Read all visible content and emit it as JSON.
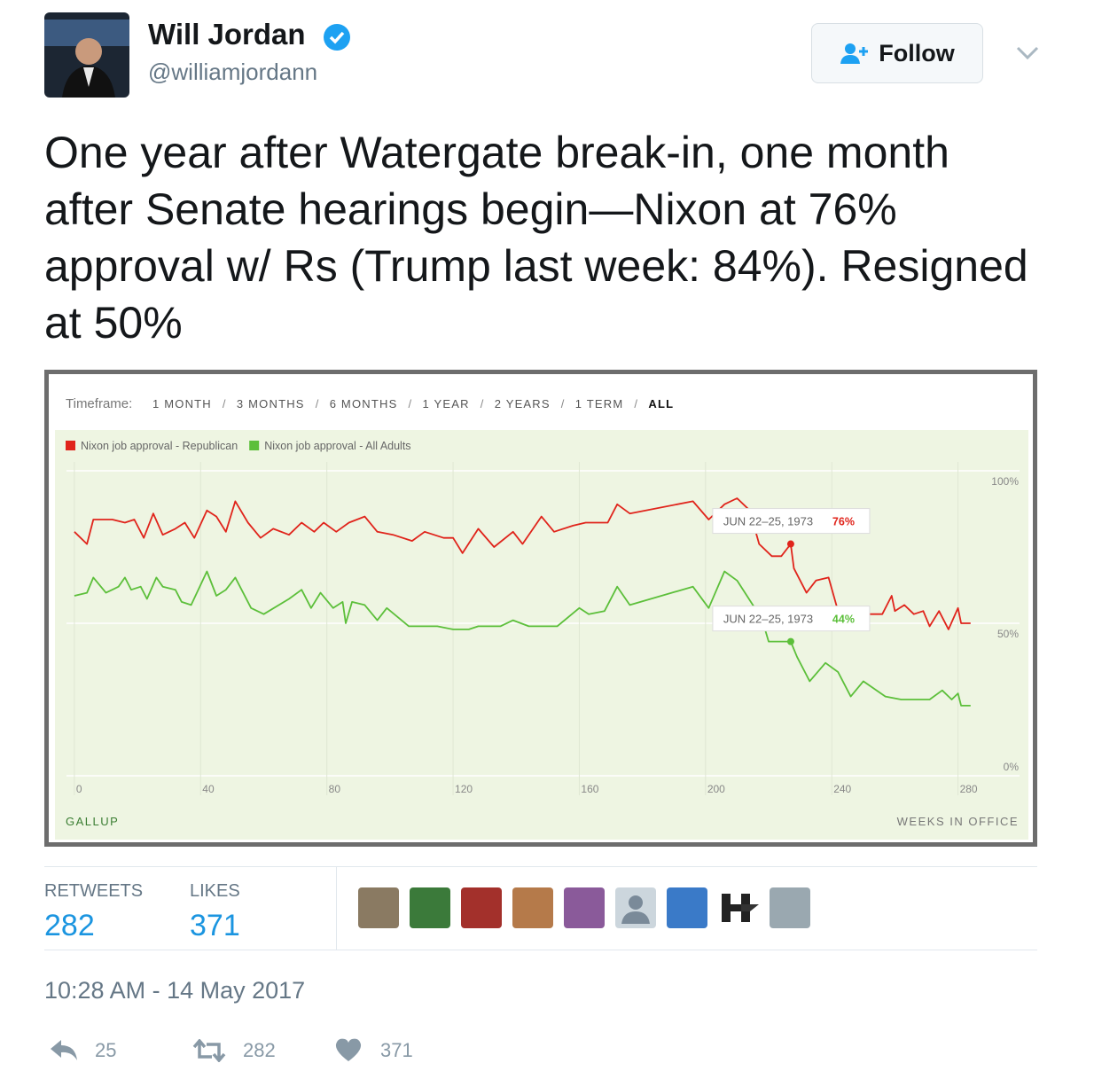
{
  "tweet": {
    "name": "Will Jordan",
    "handle": "@williamjordann",
    "follow": "Follow",
    "text": "One year after Watergate break-in, one month after Senate hearings begin—Nixon at 76% approval w/ Rs (Trump last week: 84%). Resigned at 50%",
    "retweets_label": "RETWEETS",
    "retweets": 282,
    "likes_label": "LIKES",
    "likes": 371,
    "timestamp": "10:28 AM - 14 May 2017",
    "actions": {
      "replies": 25,
      "retweets": 282,
      "likes": 371
    }
  },
  "chart_data": {
    "type": "line",
    "timeframe_label": "Timeframe:",
    "timeframes": [
      "1 MONTH",
      "3 MONTHS",
      "6 MONTHS",
      "1 YEAR",
      "2 YEARS",
      "1 TERM",
      "ALL"
    ],
    "selected_timeframe": "ALL",
    "series": [
      {
        "name": "Nixon job approval - Republican",
        "color": "#e0241b",
        "x": [
          0,
          4,
          6,
          12,
          16,
          19,
          22,
          25,
          28,
          32,
          35,
          38,
          42,
          45,
          48,
          51,
          55,
          59,
          63,
          68,
          72,
          76,
          79,
          83,
          87,
          92,
          96,
          101,
          107,
          111,
          117,
          120,
          123,
          128,
          133,
          139,
          142,
          148,
          152,
          158,
          162,
          169,
          172,
          176,
          196,
          201,
          206,
          210,
          214,
          217,
          221,
          224,
          227,
          228,
          232,
          235,
          239,
          242,
          246,
          250,
          256,
          259,
          260,
          263,
          266,
          269,
          271,
          274,
          277,
          280,
          281,
          284
        ],
        "values": [
          80,
          76,
          84,
          84,
          83,
          84,
          78,
          86,
          79,
          81,
          83,
          78,
          87,
          85,
          80,
          90,
          83,
          78,
          81,
          79,
          83,
          80,
          83,
          80,
          83,
          85,
          80,
          79,
          77,
          80,
          78,
          78,
          73,
          81,
          75,
          80,
          76,
          85,
          80,
          82,
          83,
          83,
          89,
          86,
          90,
          84,
          89,
          91,
          87,
          76,
          72,
          72,
          76,
          68,
          60,
          64,
          65,
          54,
          55,
          53,
          53,
          59,
          54,
          56,
          53,
          54,
          49,
          54,
          48,
          55,
          50,
          50
        ]
      },
      {
        "name": "Nixon job approval - All Adults",
        "color": "#5cbf3a",
        "x": [
          0,
          4,
          6,
          10,
          14,
          16,
          18,
          21,
          23,
          26,
          28,
          32,
          34,
          37,
          42,
          45,
          48,
          51,
          56,
          60,
          68,
          72,
          75,
          78,
          82,
          85,
          86,
          88,
          92,
          96,
          99,
          106,
          110,
          115,
          120,
          125,
          128,
          135,
          139,
          144,
          149,
          153,
          160,
          163,
          168,
          172,
          176,
          196,
          201,
          206,
          210,
          215,
          218,
          220,
          224,
          227,
          229,
          233,
          238,
          242,
          246,
          250,
          257,
          262,
          267,
          271,
          275,
          278,
          280,
          281,
          284
        ],
        "values": [
          59,
          60,
          65,
          60,
          62,
          65,
          61,
          62,
          58,
          65,
          62,
          61,
          57,
          56,
          67,
          59,
          61,
          65,
          55,
          53,
          58,
          61,
          55,
          60,
          55,
          57,
          50,
          57,
          56,
          51,
          55,
          49,
          49,
          49,
          48,
          48,
          49,
          49,
          51,
          49,
          49,
          49,
          55,
          53,
          54,
          62,
          56,
          62,
          55,
          67,
          64,
          56,
          51,
          44,
          44,
          44,
          39,
          31,
          37,
          34,
          26,
          31,
          26,
          25,
          25,
          25,
          28,
          25,
          27,
          23,
          23
        ]
      }
    ],
    "annotations": [
      {
        "label": "JUN 22–25, 1973",
        "value": 76,
        "value_label": "76%",
        "x": 227,
        "series": 0
      },
      {
        "label": "JUN 22–25, 1973",
        "value": 44,
        "value_label": "44%",
        "x": 227,
        "series": 1
      }
    ],
    "xlim": [
      -2.5,
      299.5
    ],
    "xticks": [
      0,
      40,
      80,
      120,
      160,
      200,
      240,
      280
    ],
    "ylim": [
      0,
      100
    ],
    "yticks": [
      {
        "value": 0,
        "label": "0%"
      },
      {
        "value": 50,
        "label": "50%"
      },
      {
        "value": 100,
        "label": "100%"
      }
    ],
    "grid": true,
    "source": "GALLUP",
    "xlabel": "WEEKS IN OFFICE"
  }
}
